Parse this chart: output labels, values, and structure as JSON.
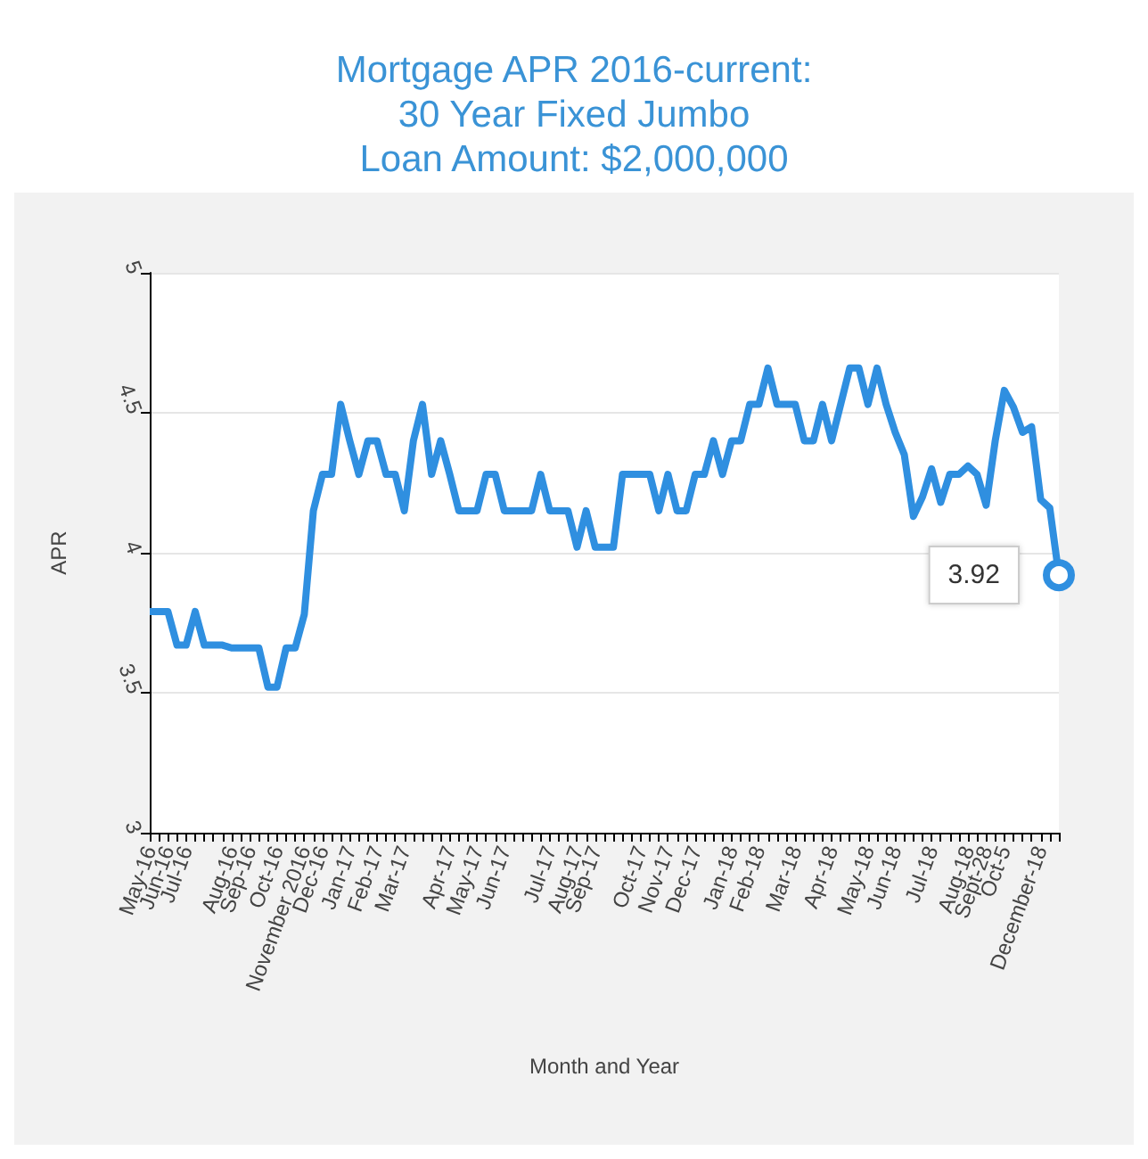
{
  "chart_data": {
    "type": "line",
    "title": "Mortgage APR 2016-current:\n30 Year Fixed Jumbo\nLoan Amount: $2,000,000",
    "xlabel": "Month and Year",
    "ylabel": "APR",
    "categories": [
      "May-16",
      null,
      "Jun-16",
      null,
      "Jul-16",
      null,
      null,
      null,
      null,
      "Aug-16",
      null,
      "Sep-16",
      null,
      null,
      "Oct-16",
      null,
      null,
      "November 2016",
      null,
      "Dec-16",
      null,
      null,
      "Jan-17",
      null,
      null,
      "Feb-17",
      null,
      null,
      "Mar-17",
      null,
      null,
      null,
      null,
      "Apr-17",
      null,
      null,
      "May-17",
      null,
      null,
      "Jun-17",
      null,
      null,
      null,
      null,
      "Jul-17",
      null,
      null,
      "Aug-17",
      null,
      "Sep-17",
      null,
      null,
      null,
      null,
      "Oct-17",
      null,
      null,
      "Nov-17",
      null,
      null,
      "Dec-17",
      null,
      null,
      null,
      "Jan-18",
      null,
      null,
      "Feb-18",
      null,
      null,
      null,
      "Mar-18",
      null,
      null,
      null,
      "Apr-18",
      null,
      null,
      null,
      "May-18",
      null,
      null,
      "Jun-18",
      null,
      null,
      null,
      "Jul-18",
      null,
      null,
      null,
      "Aug-18",
      null,
      "Sept-28",
      null,
      "Oct-5",
      null,
      null,
      null,
      "December-18",
      null,
      null
    ],
    "series": [
      {
        "color": "#2f8fe0",
        "values": [
          3.79,
          3.79,
          3.79,
          3.67,
          3.67,
          3.79,
          3.67,
          3.67,
          3.67,
          3.66,
          3.66,
          3.66,
          3.66,
          3.52,
          3.52,
          3.66,
          3.66,
          3.78,
          4.15,
          4.28,
          4.28,
          4.53,
          4.4,
          4.28,
          4.4,
          4.4,
          4.28,
          4.28,
          4.15,
          4.4,
          4.53,
          4.28,
          4.4,
          4.28,
          4.15,
          4.15,
          4.15,
          4.28,
          4.28,
          4.15,
          4.15,
          4.15,
          4.15,
          4.28,
          4.15,
          4.15,
          4.15,
          4.02,
          4.15,
          4.02,
          4.02,
          4.02,
          4.28,
          4.28,
          4.28,
          4.28,
          4.15,
          4.28,
          4.15,
          4.15,
          4.28,
          4.28,
          4.4,
          4.28,
          4.4,
          4.4,
          4.53,
          4.53,
          4.66,
          4.53,
          4.53,
          4.53,
          4.4,
          4.4,
          4.53,
          4.4,
          4.53,
          4.66,
          4.66,
          4.53,
          4.66,
          4.53,
          4.43,
          4.35,
          4.13,
          4.2,
          4.3,
          4.18,
          4.28,
          4.28,
          4.31,
          4.28,
          4.17,
          4.4,
          4.58,
          4.52,
          4.43,
          4.45,
          4.19,
          4.16,
          3.92
        ],
        "value_labels": [
          null,
          null,
          null,
          null,
          null,
          null,
          null,
          null,
          null,
          null,
          null,
          null,
          null,
          null,
          null,
          null,
          null,
          null,
          null,
          null,
          null,
          null,
          null,
          null,
          null,
          null,
          null,
          null,
          null,
          null,
          null,
          null,
          null,
          null,
          null,
          null,
          null,
          null,
          null,
          null,
          null,
          null,
          null,
          null,
          null,
          null,
          null,
          null,
          null,
          null,
          null,
          null,
          null,
          null,
          null,
          null,
          null,
          null,
          null,
          null,
          null,
          null,
          null,
          null,
          null,
          null,
          null,
          null,
          null,
          null,
          null,
          null,
          null,
          null,
          null,
          null,
          null,
          null,
          null,
          null,
          null,
          null,
          null,
          null,
          null,
          null,
          null,
          null,
          null,
          null,
          null,
          null,
          null,
          null,
          null,
          null,
          null,
          null,
          null,
          null,
          "3.92"
        ]
      }
    ],
    "ylim": [
      3,
      5
    ],
    "yticks": [
      3,
      3.5,
      4,
      4.5,
      5
    ],
    "grid": "y"
  }
}
